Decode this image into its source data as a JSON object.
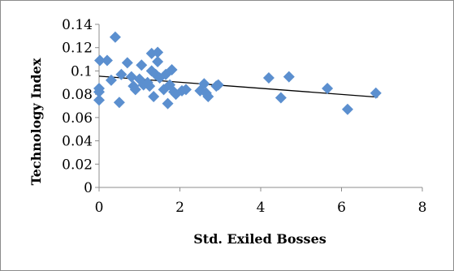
{
  "chart_data": {
    "type": "scatter",
    "xlabel": "Std. Exiled Bosses",
    "ylabel": "Technology Index",
    "xlim": [
      0,
      8
    ],
    "ylim": [
      0,
      0.14
    ],
    "x_ticks": [
      "0",
      "2",
      "4",
      "6",
      "8"
    ],
    "y_ticks": [
      "0",
      "0.02",
      "0.04",
      "0.06",
      "0.08",
      "0.1",
      "0.12",
      "0.14"
    ],
    "marker_color": "#5b8fcf",
    "trendline_color": "#000000",
    "grid": false,
    "legend": "none",
    "trendline": {
      "x": [
        0,
        6.9
      ],
      "y": [
        0.0955,
        0.0775
      ]
    },
    "series": [
      {
        "points": [
          [
            0.0,
            0.082
          ],
          [
            0.0,
            0.075
          ],
          [
            0.0,
            0.085
          ],
          [
            0.02,
            0.109
          ],
          [
            0.2,
            0.109
          ],
          [
            0.4,
            0.129
          ],
          [
            0.3,
            0.092
          ],
          [
            0.5,
            0.073
          ],
          [
            0.55,
            0.097
          ],
          [
            0.7,
            0.107
          ],
          [
            0.8,
            0.095
          ],
          [
            0.85,
            0.087
          ],
          [
            0.9,
            0.084
          ],
          [
            1.0,
            0.093
          ],
          [
            1.05,
            0.105
          ],
          [
            1.1,
            0.088
          ],
          [
            1.2,
            0.09
          ],
          [
            1.25,
            0.087
          ],
          [
            1.3,
            0.1
          ],
          [
            1.3,
            0.115
          ],
          [
            1.35,
            0.078
          ],
          [
            1.4,
            0.097
          ],
          [
            1.45,
            0.116
          ],
          [
            1.45,
            0.108
          ],
          [
            1.5,
            0.094
          ],
          [
            1.6,
            0.084
          ],
          [
            1.65,
            0.097
          ],
          [
            1.7,
            0.072
          ],
          [
            1.75,
            0.088
          ],
          [
            1.8,
            0.101
          ],
          [
            1.85,
            0.082
          ],
          [
            1.9,
            0.08
          ],
          [
            2.05,
            0.083
          ],
          [
            2.15,
            0.084
          ],
          [
            2.5,
            0.083
          ],
          [
            2.6,
            0.089
          ],
          [
            2.65,
            0.081
          ],
          [
            2.7,
            0.078
          ],
          [
            2.9,
            0.087
          ],
          [
            2.95,
            0.088
          ],
          [
            4.2,
            0.094
          ],
          [
            4.5,
            0.077
          ],
          [
            4.7,
            0.095
          ],
          [
            5.65,
            0.085
          ],
          [
            6.15,
            0.067
          ],
          [
            6.85,
            0.081
          ]
        ]
      }
    ]
  }
}
